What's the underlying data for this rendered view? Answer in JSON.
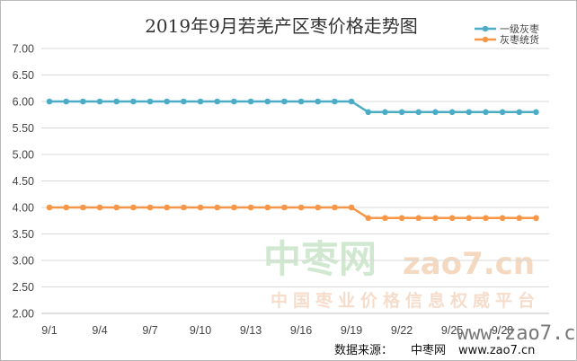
{
  "chart_data": {
    "type": "line",
    "title": "2019年9月若羌产区枣价格走势图",
    "x": [
      "9/1",
      "9/2",
      "9/3",
      "9/4",
      "9/5",
      "9/6",
      "9/7",
      "9/8",
      "9/9",
      "9/10",
      "9/11",
      "9/12",
      "9/13",
      "9/14",
      "9/15",
      "9/16",
      "9/17",
      "9/18",
      "9/19",
      "9/20",
      "9/21",
      "9/22",
      "9/23",
      "9/24",
      "9/25",
      "9/26",
      "9/27",
      "9/28",
      "9/29",
      "9/30"
    ],
    "xtick_labels": [
      "9/1",
      "9/4",
      "9/7",
      "9/10",
      "9/13",
      "9/16",
      "9/19",
      "9/22",
      "9/25",
      "9/28"
    ],
    "ylim": [
      2.0,
      7.0
    ],
    "ytick_labels": [
      "2.00",
      "2.50",
      "3.00",
      "3.50",
      "4.00",
      "4.50",
      "5.00",
      "5.50",
      "6.00",
      "6.50",
      "7.00"
    ],
    "grid": true,
    "legend_position": "top-right",
    "series": [
      {
        "name": "一级灰枣",
        "color": "#4bacc6",
        "values": [
          6.0,
          6.0,
          6.0,
          6.0,
          6.0,
          6.0,
          6.0,
          6.0,
          6.0,
          6.0,
          6.0,
          6.0,
          6.0,
          6.0,
          6.0,
          6.0,
          6.0,
          6.0,
          6.0,
          5.8,
          5.8,
          5.8,
          5.8,
          5.8,
          5.8,
          5.8,
          5.8,
          5.8,
          5.8,
          5.8
        ]
      },
      {
        "name": "灰枣统货",
        "color": "#f79646",
        "values": [
          4.0,
          4.0,
          4.0,
          4.0,
          4.0,
          4.0,
          4.0,
          4.0,
          4.0,
          4.0,
          4.0,
          4.0,
          4.0,
          4.0,
          4.0,
          4.0,
          4.0,
          4.0,
          4.0,
          3.8,
          3.8,
          3.8,
          3.8,
          3.8,
          3.8,
          3.8,
          3.8,
          3.8,
          3.8,
          3.8
        ]
      }
    ]
  },
  "watermark": {
    "brand": "中枣网",
    "url": "zao7.cn",
    "tagline": "中国枣业价格信息权威平台",
    "www": "www.zao7.cn"
  },
  "source": {
    "label": "数据来源：",
    "site": "中枣网",
    "url": "www.zao7.cn"
  }
}
